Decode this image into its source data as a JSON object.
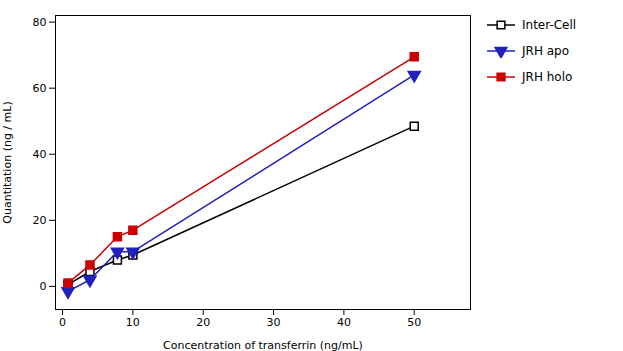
{
  "chart_data": {
    "type": "line",
    "x": [
      0.78,
      3.9,
      7.8,
      10,
      50
    ],
    "series": [
      {
        "name": "Inter-Cell",
        "color": "#000000",
        "marker": "square-open",
        "values": [
          0.5,
          4.5,
          8.0,
          9.5,
          48.5
        ]
      },
      {
        "name": "JRH apo",
        "color": "#2020bf",
        "marker": "triangle-down",
        "values": [
          -1.5,
          2.0,
          10.5,
          10.5,
          64.0
        ]
      },
      {
        "name": "JRH holo",
        "color": "#cc0000",
        "marker": "square",
        "values": [
          1.0,
          6.5,
          15.0,
          17.0,
          69.5
        ]
      }
    ],
    "xlabel": "Concentration of transferrin (ng/mL)",
    "ylabel": "Quantitation (ng / mL)",
    "xlim": [
      -1,
      58
    ],
    "ylim": [
      -7,
      82
    ],
    "xticks": [
      0,
      10,
      20,
      30,
      40,
      50
    ],
    "yticks": [
      0,
      20,
      40,
      60,
      80
    ],
    "legend": "right"
  }
}
